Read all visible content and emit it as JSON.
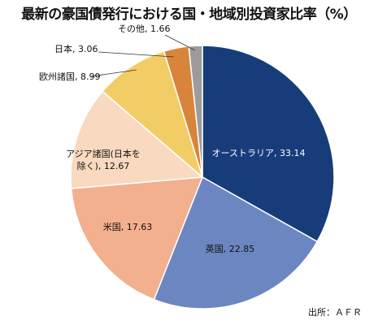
{
  "colors": {
    "オーストラリア": "#163d7a",
    "英国": "#6c86c2",
    "米国": "#f2b08e",
    "アジア諸国(日本を除く)": "#f9d9bf",
    "欧州諸国": "#f2cd66",
    "日本": "#d9843b",
    "その他": "#9c9c9c"
  },
  "chart_data": {
    "type": "pie",
    "title": "最新の豪国債発行における国・地域別投資家比率（%）",
    "slices": [
      {
        "label": "オーストラリア, 33.14",
        "value": 33.14,
        "color_key": "オーストラリア",
        "label_color": "#ffffff"
      },
      {
        "label": "英国, 22.85",
        "value": 22.85,
        "color_key": "英国",
        "label_color": "#111111"
      },
      {
        "label": "米国, 17.63",
        "value": 17.63,
        "color_key": "米国",
        "label_color": "#111111"
      },
      {
        "label": "アジア諸国(日本を除く), 12.67",
        "label_lines": [
          "アジア諸国(日本を",
          "除く), 12.67"
        ],
        "value": 12.67,
        "color_key": "アジア諸国(日本を除く)",
        "label_color": "#111111"
      },
      {
        "label": "欧州諸国, 8.99",
        "value": 8.99,
        "color_key": "欧州諸国",
        "label_color": "#111111",
        "outside": true
      },
      {
        "label": "日本, 3.06",
        "value": 3.06,
        "color_key": "日本",
        "label_color": "#111111",
        "outside": true
      },
      {
        "label": "その他, 1.66",
        "value": 1.66,
        "color_key": "その他",
        "label_color": "#111111",
        "outside": true
      }
    ]
  },
  "source": "出所：ＡＦＲ"
}
